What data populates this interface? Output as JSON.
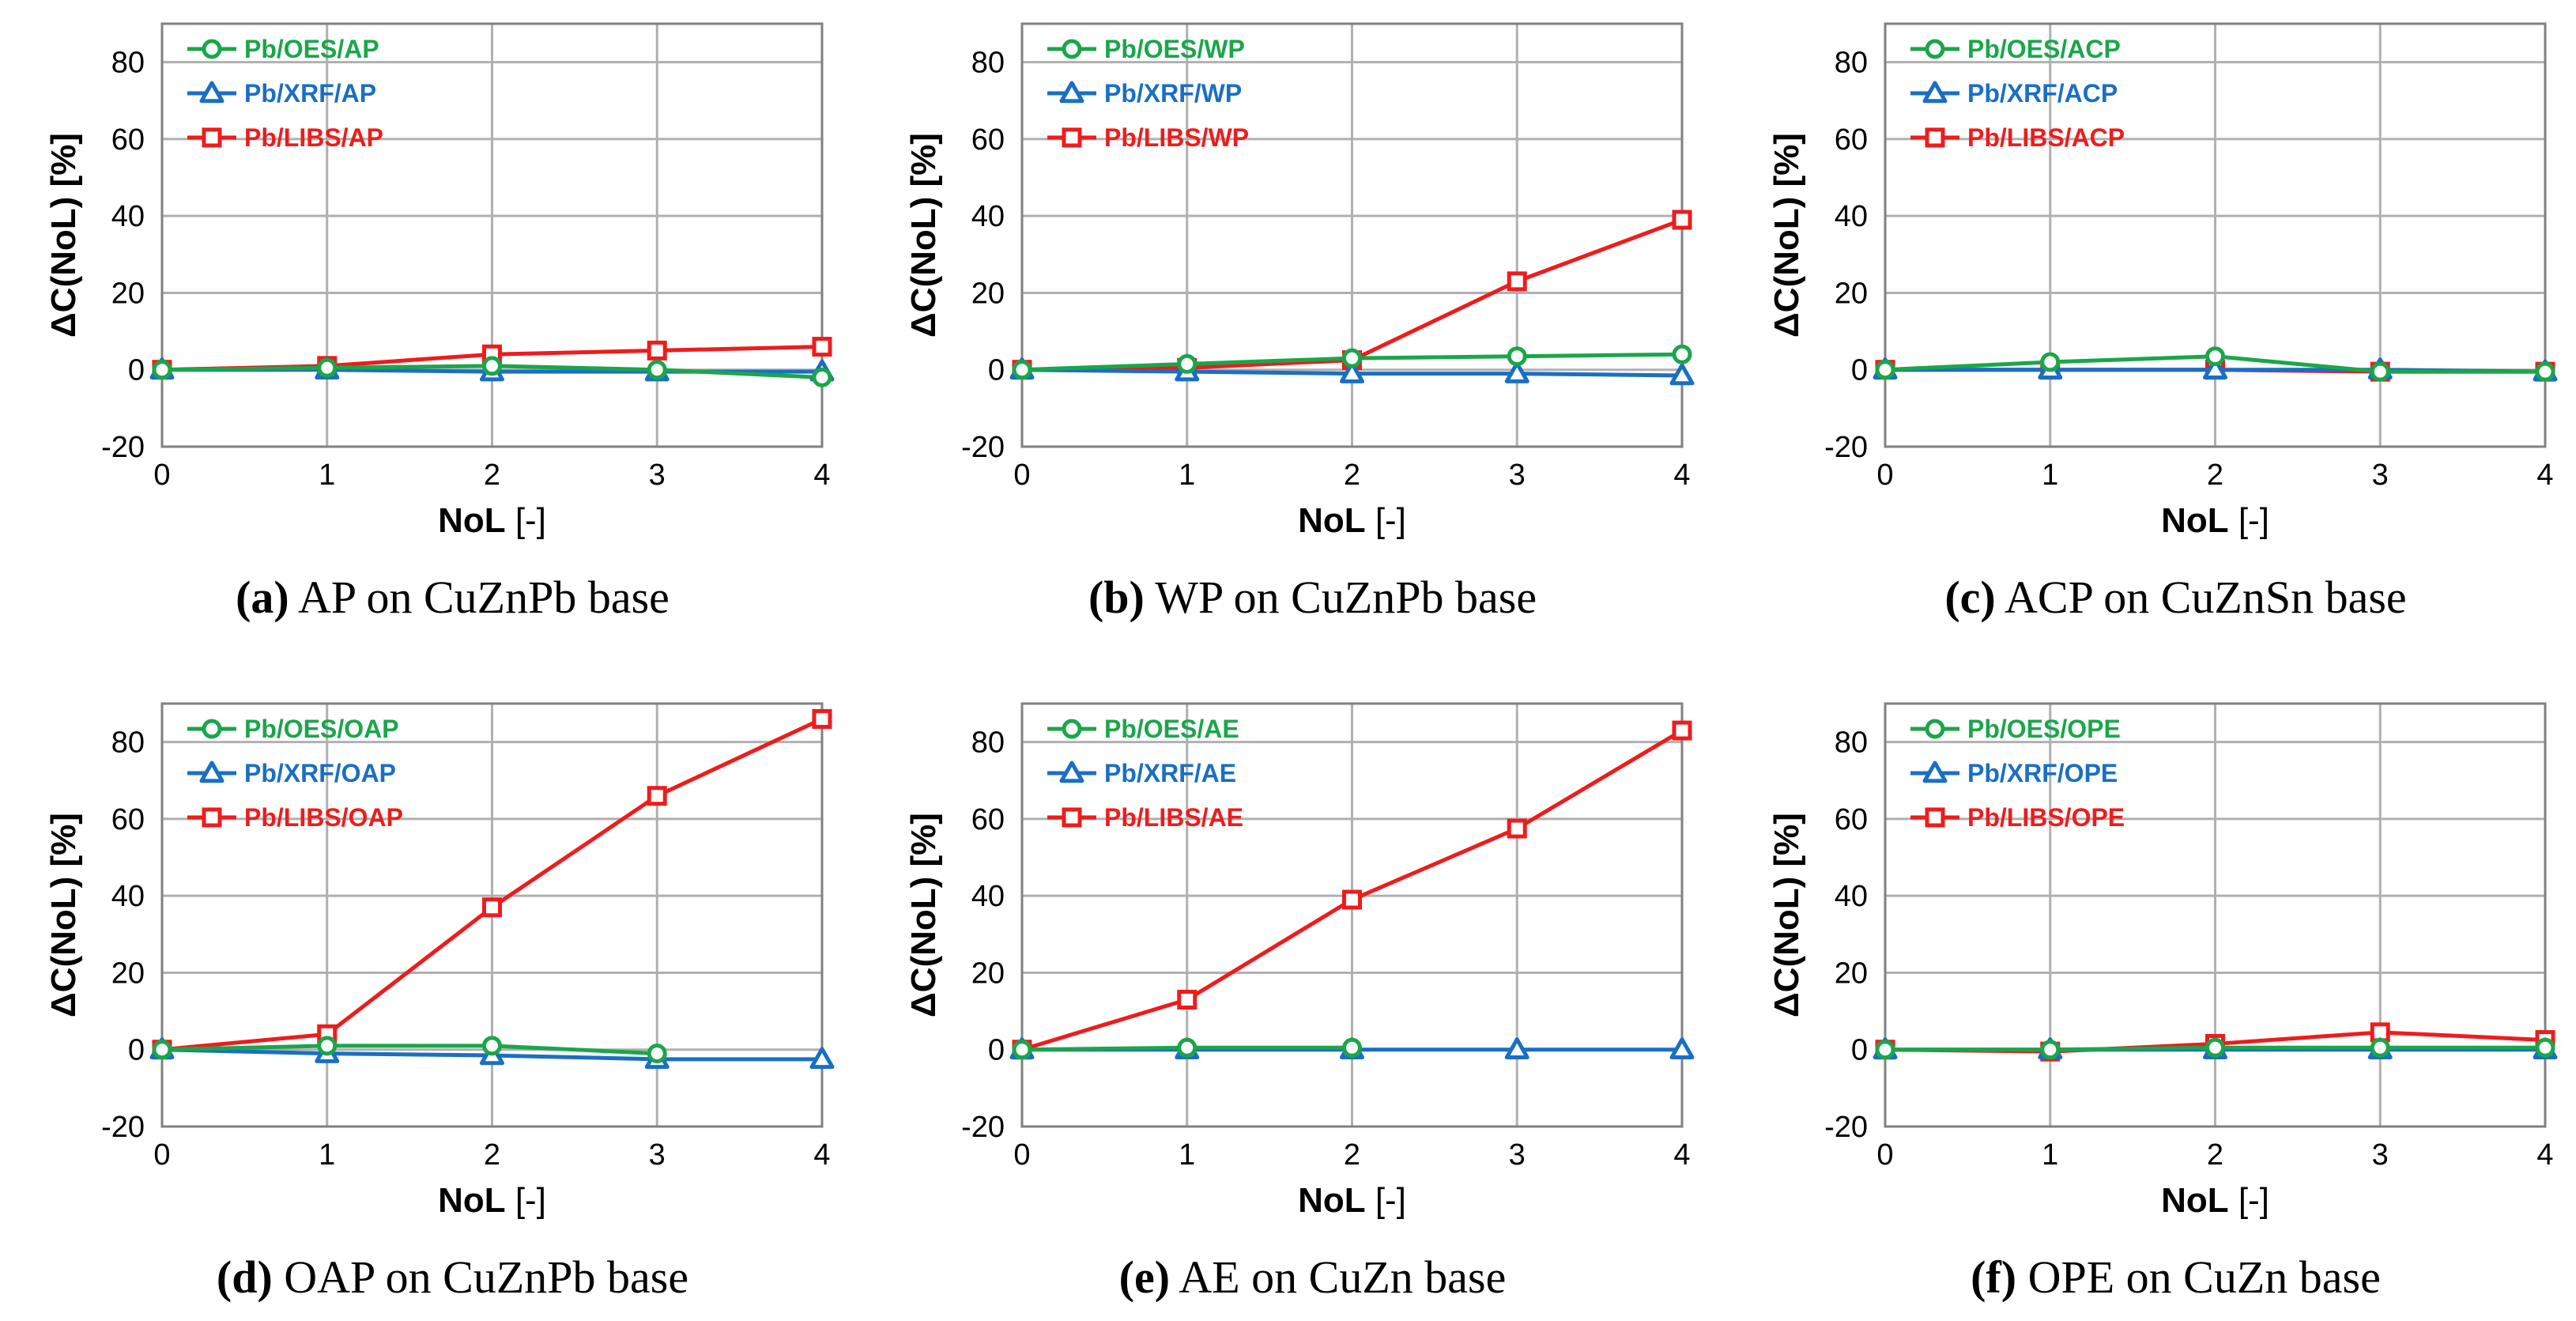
{
  "colors": {
    "OES": "#1aa64a",
    "XRF": "#1a6fc4",
    "LIBS": "#ee1c1c"
  },
  "chart_data": [
    {
      "type": "line",
      "caption_letter": "(a)",
      "caption_text": " AP on CuZnPb base",
      "xlabel": "NoL [-]",
      "ylabel": "ΔC(NoL) [%]",
      "x": [
        0,
        1,
        2,
        3,
        4
      ],
      "xlim": [
        0,
        4
      ],
      "ylim": [
        -20,
        90
      ],
      "yticks": [
        -20,
        0,
        20,
        40,
        60,
        80
      ],
      "grid": true,
      "legend_position": "top-left",
      "series": [
        {
          "name": "Pb/OES/AP",
          "color_key": "OES",
          "marker": "circle",
          "values": [
            0,
            0.5,
            1,
            0,
            -2
          ]
        },
        {
          "name": "Pb/XRF/AP",
          "color_key": "XRF",
          "marker": "triangle",
          "values": [
            0,
            0,
            -0.5,
            -0.5,
            -0.5
          ]
        },
        {
          "name": "Pb/LIBS/AP",
          "color_key": "LIBS",
          "marker": "square",
          "values": [
            0,
            1,
            4,
            5,
            6
          ]
        }
      ]
    },
    {
      "type": "line",
      "caption_letter": "(b)",
      "caption_text": " WP on CuZnPb base",
      "xlabel": "NoL [-]",
      "ylabel": "ΔC(NoL) [%]",
      "x": [
        0,
        1,
        2,
        3,
        4
      ],
      "xlim": [
        0,
        4
      ],
      "ylim": [
        -20,
        90
      ],
      "yticks": [
        -20,
        0,
        20,
        40,
        60,
        80
      ],
      "grid": true,
      "legend_position": "top-left",
      "series": [
        {
          "name": "Pb/OES/WP",
          "color_key": "OES",
          "marker": "circle",
          "values": [
            0,
            1.5,
            3,
            3.5,
            4
          ]
        },
        {
          "name": "Pb/XRF/WP",
          "color_key": "XRF",
          "marker": "triangle",
          "values": [
            0,
            -0.5,
            -1,
            -1,
            -1.5
          ]
        },
        {
          "name": "Pb/LIBS/WP",
          "color_key": "LIBS",
          "marker": "square",
          "values": [
            0,
            0.5,
            2.5,
            23,
            39
          ]
        }
      ]
    },
    {
      "type": "line",
      "caption_letter": "(c)",
      "caption_text": " ACP on CuZnSn base",
      "xlabel": "NoL [-]",
      "ylabel": "ΔC(NoL) [%]",
      "x": [
        0,
        1,
        2,
        3,
        4
      ],
      "xlim": [
        0,
        4
      ],
      "ylim": [
        -20,
        90
      ],
      "yticks": [
        -20,
        0,
        20,
        40,
        60,
        80
      ],
      "grid": true,
      "legend_position": "top-left",
      "series": [
        {
          "name": "Pb/OES/ACP",
          "color_key": "OES",
          "marker": "circle",
          "values": [
            0,
            2,
            3.5,
            -0.5,
            -0.5
          ]
        },
        {
          "name": "Pb/XRF/ACP",
          "color_key": "XRF",
          "marker": "triangle",
          "values": [
            0,
            0,
            0,
            0,
            -0.5
          ]
        },
        {
          "name": "Pb/LIBS/ACP",
          "color_key": "LIBS",
          "marker": "square",
          "values": [
            0,
            0,
            0,
            -0.5,
            -0.5
          ]
        }
      ]
    },
    {
      "type": "line",
      "caption_letter": "(d)",
      "caption_text": " OAP on CuZnPb base",
      "xlabel": "NoL [-]",
      "ylabel": "ΔC(NoL) [%]",
      "x": [
        0,
        1,
        2,
        3,
        4
      ],
      "xlim": [
        0,
        4
      ],
      "ylim": [
        -20,
        90
      ],
      "yticks": [
        -20,
        0,
        20,
        40,
        60,
        80
      ],
      "grid": true,
      "legend_position": "top-left",
      "series": [
        {
          "name": "Pb/OES/OAP",
          "color_key": "OES",
          "marker": "circle",
          "values": [
            0,
            1,
            1,
            -1,
            null
          ]
        },
        {
          "name": "Pb/XRF/OAP",
          "color_key": "XRF",
          "marker": "triangle",
          "values": [
            0,
            -1,
            -1.5,
            -2.5,
            -2.5
          ]
        },
        {
          "name": "Pb/LIBS/OAP",
          "color_key": "LIBS",
          "marker": "square",
          "values": [
            0,
            4,
            37,
            66,
            86
          ]
        }
      ]
    },
    {
      "type": "line",
      "caption_letter": "(e)",
      "caption_text": " AE on CuZn base",
      "xlabel": "NoL [-]",
      "ylabel": "ΔC(NoL) [%]",
      "x": [
        0,
        1,
        2,
        3,
        4
      ],
      "xlim": [
        0,
        4
      ],
      "ylim": [
        -20,
        90
      ],
      "yticks": [
        -20,
        0,
        20,
        40,
        60,
        80
      ],
      "grid": true,
      "legend_position": "top-left",
      "series": [
        {
          "name": "Pb/OES/AE",
          "color_key": "OES",
          "marker": "circle",
          "values": [
            0,
            0.5,
            0.5,
            null,
            null
          ]
        },
        {
          "name": "Pb/XRF/AE",
          "color_key": "XRF",
          "marker": "triangle",
          "values": [
            0,
            0,
            0,
            0,
            0
          ]
        },
        {
          "name": "Pb/LIBS/AE",
          "color_key": "LIBS",
          "marker": "square",
          "values": [
            0,
            13,
            39,
            57.5,
            83
          ]
        }
      ]
    },
    {
      "type": "line",
      "caption_letter": "(f)",
      "caption_text": " OPE on CuZn base",
      "xlabel": "NoL [-]",
      "ylabel": "ΔC(NoL) [%]",
      "x": [
        0,
        1,
        2,
        3,
        4
      ],
      "xlim": [
        0,
        4
      ],
      "ylim": [
        -20,
        90
      ],
      "yticks": [
        -20,
        0,
        20,
        40,
        60,
        80
      ],
      "grid": true,
      "legend_position": "top-left",
      "series": [
        {
          "name": "Pb/OES/OPE",
          "color_key": "OES",
          "marker": "circle",
          "values": [
            0,
            0,
            0.5,
            0.5,
            0.5
          ]
        },
        {
          "name": "Pb/XRF/OPE",
          "color_key": "XRF",
          "marker": "triangle",
          "values": [
            0,
            0,
            0,
            0,
            0
          ]
        },
        {
          "name": "Pb/LIBS/OPE",
          "color_key": "LIBS",
          "marker": "square",
          "values": [
            0,
            -0.5,
            1.5,
            4.5,
            2.5
          ]
        }
      ]
    }
  ]
}
